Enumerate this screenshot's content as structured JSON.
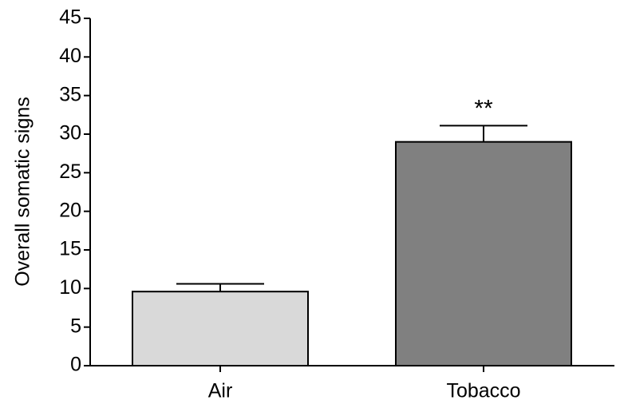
{
  "chart_data": {
    "type": "bar",
    "y_label": "Overall somatic signs",
    "categories": [
      "Air",
      "Tobacco"
    ],
    "values": [
      9.6,
      29.0
    ],
    "errors": [
      1.0,
      2.1
    ],
    "colors": [
      "#d9d9d9",
      "#808080"
    ],
    "value_annotations": [
      null,
      "**"
    ],
    "ylim": [
      0,
      45
    ],
    "yticks": [
      0,
      5,
      10,
      15,
      20,
      25,
      30,
      35,
      40,
      45
    ]
  }
}
